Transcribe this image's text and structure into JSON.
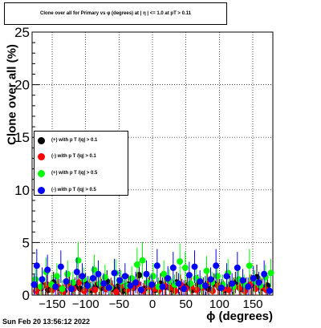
{
  "title": "Clone  over all for Primary vs φ (degrees) at | η | <= 1.0 at pT > 0.11",
  "timestamp": "Sun Feb 20 13:56:12 2022",
  "chart_data": {
    "type": "scatter",
    "xlabel": "ϕ (degrees)",
    "ylabel": "Clone  over all (%)",
    "xlim": [
      -180,
      180
    ],
    "ylim": [
      0,
      25
    ],
    "xticks": [
      -150,
      -100,
      -50,
      0,
      50,
      100,
      150
    ],
    "xtick_labels": [
      "−150",
      "−100",
      "−50",
      "0",
      "50",
      "100",
      "150"
    ],
    "yticks": [
      0,
      5,
      10,
      15,
      20,
      25
    ],
    "ytick_labels": [
      "0",
      "5",
      "10",
      "15",
      "20",
      "25"
    ],
    "grid": true,
    "legend_placement": "left",
    "series": [
      {
        "name": "(+) with p T /|q| > 0.1",
        "color": "#000000",
        "x": [
          -172,
          -164,
          -156,
          -148,
          -140,
          -132,
          -124,
          -116,
          -108,
          -100,
          -92,
          -84,
          -76,
          -68,
          -60,
          -52,
          -44,
          -36,
          -28,
          -20,
          -12,
          -4,
          4,
          12,
          20,
          28,
          36,
          44,
          52,
          60,
          68,
          76,
          84,
          92,
          100,
          108,
          116,
          124,
          132,
          140,
          148,
          156,
          164,
          172
        ],
        "y": [
          0.6,
          0.9,
          0.5,
          1.2,
          0.7,
          0.4,
          1.0,
          0.8,
          0.6,
          1.1,
          0.5,
          0.9,
          0.7,
          1.3,
          0.6,
          0.8,
          0.4,
          1.0,
          0.7,
          1.9,
          0.6,
          0.9,
          0.5,
          1.1,
          0.8,
          0.6,
          1.2,
          0.7,
          0.9,
          0.5,
          1.0,
          0.8,
          0.6,
          1.1,
          0.7,
          0.5,
          0.9,
          1.2,
          0.6,
          0.8,
          1.0,
          1.7,
          0.7,
          0.9
        ]
      },
      {
        "name": "(-) with p T /|q| > 0.1",
        "color": "#ff0000",
        "x": [
          -174,
          -166,
          -158,
          -150,
          -142,
          -134,
          -126,
          -118,
          -110,
          -102,
          -94,
          -86,
          -78,
          -70,
          -62,
          -54,
          -46,
          -38,
          -30,
          -22,
          -14,
          -6,
          2,
          10,
          18,
          26,
          34,
          42,
          50,
          58,
          66,
          74,
          82,
          90,
          98,
          106,
          114,
          122,
          130,
          138,
          146,
          154,
          162,
          170
        ],
        "y": [
          0.4,
          0.7,
          1.0,
          0.5,
          0.8,
          0.3,
          0.9,
          0.6,
          1.2,
          0.4,
          0.7,
          0.5,
          1.0,
          0.6,
          0.8,
          0.3,
          0.9,
          0.5,
          0.7,
          1.1,
          0.4,
          0.8,
          0.6,
          0.5,
          0.9,
          0.7,
          0.4,
          1.0,
          0.6,
          0.8,
          0.5,
          0.7,
          1.1,
          0.4,
          0.9,
          0.6,
          0.5,
          0.8,
          0.7,
          0.4,
          1.0,
          0.6,
          0.8,
          0.5
        ]
      },
      {
        "name": "(+) with p T /|q| > 0.5",
        "color": "#00ff00",
        "x": [
          -175,
          -167,
          -159,
          -151,
          -143,
          -135,
          -127,
          -119,
          -111,
          -103,
          -95,
          -87,
          -79,
          -71,
          -63,
          -55,
          -47,
          -39,
          -31,
          -23,
          -15,
          -7,
          1,
          9,
          17,
          25,
          33,
          41,
          49,
          57,
          65,
          73,
          81,
          89,
          97,
          105,
          113,
          121,
          129,
          137,
          145,
          153,
          161,
          169,
          177
        ],
        "y": [
          1.5,
          0.8,
          2.2,
          1.0,
          1.8,
          0.6,
          2.0,
          1.2,
          3.3,
          1.5,
          0.9,
          2.4,
          1.1,
          1.7,
          0.7,
          2.1,
          1.3,
          0.9,
          1.6,
          2.9,
          3.3,
          1.2,
          1.8,
          0.8,
          2.0,
          1.4,
          1.0,
          3.2,
          2.6,
          1.1,
          1.6,
          0.9,
          2.3,
          1.2,
          1.8,
          1.0,
          2.1,
          0.8,
          1.5,
          1.0,
          2.8,
          1.3,
          0.9,
          1.7,
          2.1
        ]
      },
      {
        "name": "(-) with p T /|q| > 0.5",
        "color": "#0000ff",
        "x": [
          -177,
          -173,
          -165,
          -157,
          -145,
          -137,
          -129,
          -121,
          -113,
          -105,
          -97,
          -89,
          -81,
          -73,
          -65,
          -57,
          -49,
          -41,
          -33,
          -25,
          -17,
          -9,
          -1,
          7,
          15,
          23,
          31,
          39,
          47,
          55,
          63,
          71,
          79,
          87,
          95,
          103,
          111,
          119,
          127,
          135,
          143,
          151,
          159,
          167,
          175
        ],
        "y": [
          1.0,
          2.8,
          1.5,
          2.4,
          0.8,
          2.7,
          1.3,
          0.6,
          2.2,
          1.8,
          0.9,
          1.6,
          2.0,
          1.1,
          0.7,
          2.1,
          1.4,
          1.8,
          0.9,
          1.2,
          0.5,
          2.0,
          1.0,
          2.8,
          0.8,
          1.6,
          2.6,
          1.1,
          0.6,
          1.9,
          2.7,
          1.3,
          0.9,
          1.5,
          2.8,
          0.7,
          1.8,
          1.1,
          2.6,
          1.4,
          0.8,
          1.6,
          1.2,
          2.0,
          0.4
        ]
      }
    ]
  }
}
